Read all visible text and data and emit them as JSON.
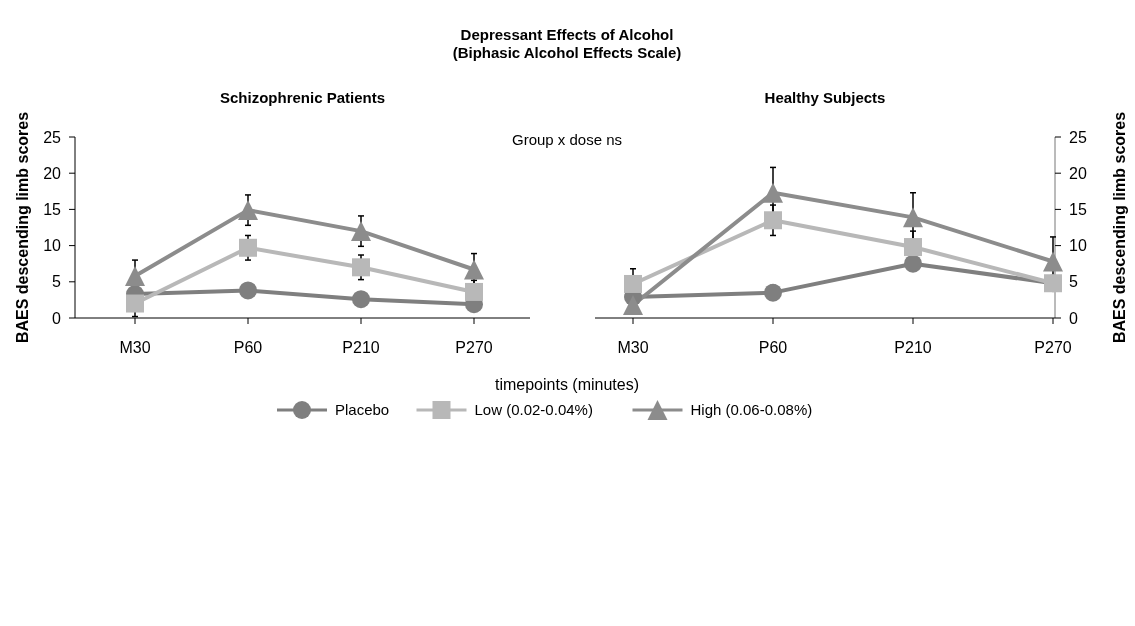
{
  "chart_data": [
    {
      "type": "line",
      "title": "Schizophrenic Patients",
      "xlabel": "timepoints (minutes)",
      "ylabel": "BAES descending limb scores",
      "annotations": [
        "Depressant Effects of Alcohol",
        "(Biphasic Alcohol Effects Scale)",
        "Group x dose  ns"
      ],
      "categories": [
        "M30",
        "P60",
        "P210",
        "P270"
      ],
      "ylim": [
        0,
        25
      ],
      "yticks": [
        0,
        5,
        10,
        15,
        20,
        25
      ],
      "legend": "bottom",
      "grid": false,
      "series": [
        {
          "name": "Placebo",
          "color": "#7f7f7f",
          "marker": "circle",
          "values": [
            3.3,
            3.8,
            2.6,
            1.9
          ],
          "errors": [
            null,
            null,
            null,
            null
          ]
        },
        {
          "name": "Low (0.02-0.04%)",
          "color": "#b8b8b8",
          "marker": "square",
          "values": [
            2.0,
            9.7,
            7.0,
            3.6
          ],
          "errors": [
            1.8,
            1.7,
            1.7,
            1.6
          ]
        },
        {
          "name": "High (0.06-0.08%)",
          "color": "#8c8c8c",
          "marker": "triangle",
          "values": [
            5.8,
            14.9,
            12.0,
            6.7
          ],
          "errors": [
            2.2,
            2.1,
            2.1,
            2.2
          ]
        }
      ]
    },
    {
      "type": "line",
      "title": "Healthy Subjects",
      "y2label": "BAES descending limb scores",
      "categories": [
        "M30",
        "P60",
        "P210",
        "P270"
      ],
      "y2lim": [
        0,
        25
      ],
      "y2ticks": [
        0,
        5,
        10,
        15,
        20,
        25
      ],
      "grid": false,
      "series": [
        {
          "color": "#7f7f7f",
          "marker": "circle",
          "axis": "y2",
          "values": [
            2.9,
            3.5,
            7.5,
            4.8
          ],
          "errors": [
            null,
            1.0,
            1.0,
            null
          ]
        },
        {
          "color": "#b8b8b8",
          "marker": "square",
          "axis": "y2",
          "values": [
            4.7,
            13.5,
            9.8,
            4.8
          ],
          "errors": [
            2.1,
            2.1,
            2.2,
            null
          ]
        },
        {
          "color": "#8c8c8c",
          "marker": "triangle",
          "axis": "y2",
          "values": [
            1.8,
            17.3,
            13.9,
            7.8
          ],
          "errors": [
            null,
            3.5,
            3.4,
            3.4
          ]
        }
      ]
    }
  ]
}
